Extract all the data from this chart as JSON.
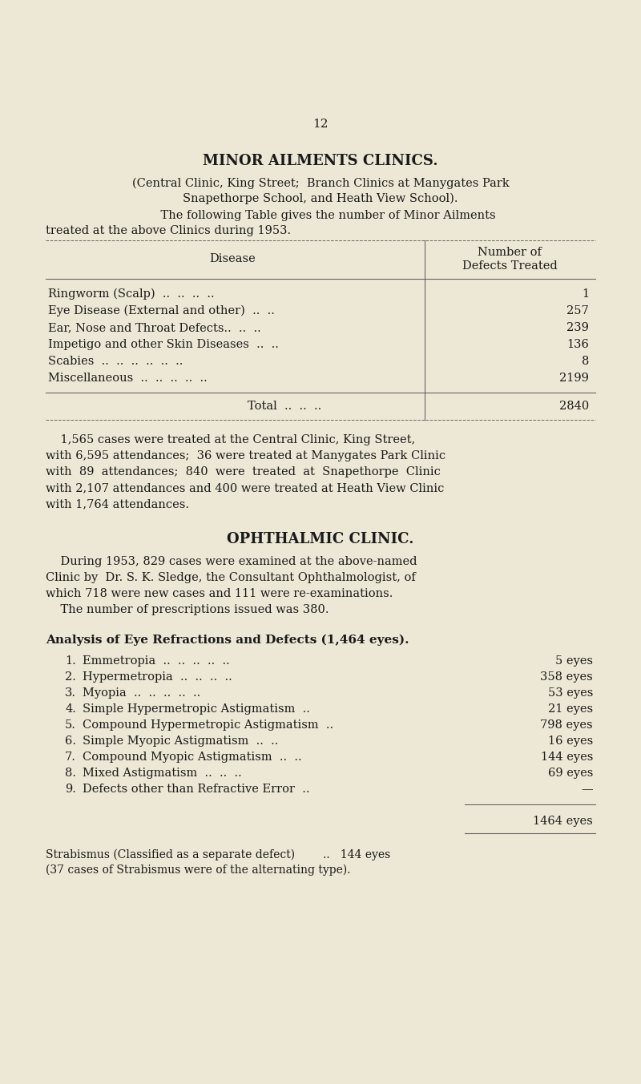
{
  "bg_color": "#ede8d5",
  "text_color": "#1a1a1a",
  "page_number": "12",
  "section1_title": "MINOR AILMENTS CLINICS.",
  "section1_sub1": "(Central Clinic, King Street;  Branch Clinics at Manygates Park",
  "section1_sub2": "Snapethorpe School, and Heath View School).",
  "section1_intro1": "    The following Table gives the number of Minor Ailments",
  "section1_intro2": "treated at the above Clinics during 1953.",
  "table1_col1_header": "Disease",
  "table1_col2_hdr1": "Number of",
  "table1_col2_hdr2": "Defects Treated",
  "table1_rows_left": [
    "Ringworm (Scalp)  ..  ..  ..  ..",
    "Eye Disease (External and other)  ..  ..",
    "Ear, Nose and Throat Defects..  ..  ..",
    "Impetigo and other Skin Diseases  ..  ..",
    "Scabies  ..  ..  ..  ..  ..  ..",
    "Miscellaneous  ..  ..  ..  ..  .."
  ],
  "table1_rows_right": [
    "1",
    "257",
    "239",
    "136",
    "8",
    "2199"
  ],
  "table1_total_left": "Total  ..  ..  ..",
  "table1_total_right": "2840",
  "para1_lines": [
    "    1,565 cases were treated at the Central Clinic, King Street,",
    "with 6,595 attendances;  36 were treated at Manygates Park Clinic",
    "with  89  attendances;  840  were  treated  at  Snapethorpe  Clinic",
    "with 2,107 attendances and 400 were treated at Heath View Clinic",
    "with 1,764 attendances."
  ],
  "section2_title": "OPHTHALMIC CLINIC.",
  "para2_lines": [
    "    During 1953, 829 cases were examined at the above-named",
    "Clinic by  Dr. S. K. Sledge, the Consultant Ophthalmologist, of",
    "which 718 were new cases and 111 were re-examinations.",
    "    The number of prescriptions issued was 380."
  ],
  "analysis_title": "Analysis of Eye Refractions and Defects (1,464 eyes).",
  "analysis_nums": [
    "1.",
    "2.",
    "3.",
    "4.",
    "5.",
    "6.",
    "7.",
    "8.",
    "9."
  ],
  "analysis_labels": [
    "Emmetropia  ..  ..  ..  ..  ..",
    "Hypermetropia  ..  ..  ..  ..",
    "Myopia  ..  ..  ..  ..  ..",
    "Simple Hypermetropic Astigmatism  ..",
    "Compound Hypermetropic Astigmatism  ..",
    "Simple Myopic Astigmatism  ..  ..",
    "Compound Myopic Astigmatism  ..  ..",
    "Mixed Astigmatism  ..  ..  ..",
    "Defects other than Refractive Error  .."
  ],
  "analysis_values": [
    "5 eyes",
    "358 eyes",
    "53 eyes",
    "21 eyes",
    "798 eyes",
    "16 eyes",
    "144 eyes",
    "69 eyes",
    "—"
  ],
  "analysis_total": "1464 eyes",
  "strab1": "Strabismus (Classified as a separate defect)        ..   144 eyes",
  "strab2": "(37 cases of Strabismus were of the alternating type)."
}
